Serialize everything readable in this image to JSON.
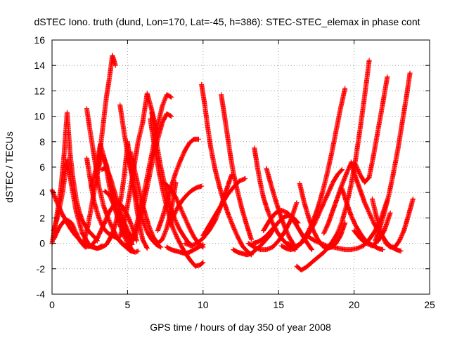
{
  "chart_data": {
    "type": "scatter",
    "title": "dSTEC Iono. truth (dund, Lon=170, Lat=-45, h=386): STEC-STEC_elemax in phase cont",
    "xlabel": "GPS time / hours of day 350 of year 2008",
    "ylabel": "dSTEC  / TECUs",
    "xlim": [
      0,
      25
    ],
    "ylim": [
      -4,
      16
    ],
    "x_ticks": [
      "0",
      "5",
      "10",
      "15",
      "20",
      "25"
    ],
    "y_ticks": [
      "-4",
      "-2",
      "0",
      "2",
      "4",
      "6",
      "8",
      "10",
      "12",
      "14",
      "16"
    ],
    "grid": true,
    "legend": "none",
    "marker": "+",
    "series_color": "#ff0000",
    "series": [
      {
        "x": [
          0.0,
          0.3,
          0.6,
          0.9,
          1.2,
          1.5,
          1.8,
          2.1,
          2.4,
          2.7,
          3.0,
          3.3,
          3.6,
          3.8,
          4.0,
          4.2,
          4.4,
          4.6,
          4.8,
          5.0
        ],
        "y": [
          4.2,
          3.3,
          2.5,
          1.8,
          1.2,
          0.7,
          0.3,
          0.0,
          -0.2,
          -0.3,
          -0.4,
          -0.3,
          -0.1,
          0.3,
          0.8,
          1.5,
          2.5,
          3.8,
          5.5,
          7.8
        ]
      },
      {
        "x": [
          0.0,
          0.3,
          0.6,
          0.8,
          1.0,
          1.2,
          1.4,
          1.6,
          1.8,
          2.0,
          2.4,
          2.8,
          3.0
        ],
        "y": [
          0.0,
          2.0,
          4.5,
          7.0,
          10.3,
          7.0,
          5.0,
          3.5,
          2.5,
          1.8,
          1.0,
          0.5,
          0.2
        ]
      },
      {
        "x": [
          0.1,
          0.4,
          0.7,
          1.0,
          1.3,
          1.6,
          2.0,
          2.5,
          3.0,
          3.3
        ],
        "y": [
          1.0,
          2.2,
          4.0,
          6.6,
          4.5,
          2.5,
          0.8,
          -0.2,
          -0.4,
          -0.2
        ]
      },
      {
        "x": [
          0.1,
          0.5,
          0.9,
          1.3,
          1.6,
          1.9,
          2.2,
          2.6,
          3.0,
          3.4,
          3.8,
          4.2,
          4.6,
          5.0,
          5.4,
          5.6
        ],
        "y": [
          0.3,
          1.3,
          1.9,
          1.6,
          0.8,
          0.1,
          -0.3,
          -0.2,
          0.4,
          1.4,
          2.5,
          3.2,
          3.0,
          2.2,
          1.0,
          0.2
        ]
      },
      {
        "x": [
          2.3,
          2.5,
          2.7,
          2.9,
          3.1,
          3.4,
          3.7,
          4.0,
          4.3,
          4.6,
          5.0,
          5.3
        ],
        "y": [
          10.6,
          9.0,
          7.5,
          6.0,
          4.5,
          3.0,
          2.0,
          1.2,
          0.5,
          0.0,
          -0.4,
          -0.6
        ]
      },
      {
        "x": [
          2.3,
          2.6,
          2.8,
          3.1,
          3.4,
          3.7,
          4.0,
          4.3,
          4.6,
          4.9,
          5.2,
          5.5,
          5.7
        ],
        "y": [
          6.7,
          4.5,
          3.2,
          2.0,
          1.2,
          0.8,
          0.6,
          0.4,
          0.1,
          -0.3,
          -0.6,
          -0.7,
          -0.6
        ]
      },
      {
        "x": [
          2.1,
          2.4,
          2.7,
          3.0,
          3.2,
          3.4,
          3.6,
          3.8,
          4.0,
          4.2
        ],
        "y": [
          0.0,
          1.5,
          3.5,
          5.5,
          7.5,
          9.5,
          11.5,
          13.0,
          14.8,
          14.0
        ]
      },
      {
        "x": [
          2.6,
          2.9,
          3.2,
          3.5,
          3.8,
          4.1,
          4.4,
          4.7,
          5.0,
          5.3
        ],
        "y": [
          4.4,
          5.8,
          7.8,
          6.5,
          4.5,
          3.0,
          1.8,
          0.8,
          0.0,
          -0.5
        ]
      },
      {
        "x": [
          3.0,
          3.3,
          3.6,
          3.9,
          4.2,
          4.5,
          4.8
        ],
        "y": [
          5.5,
          7.0,
          6.2,
          4.5,
          3.0,
          1.8,
          0.9
        ]
      },
      {
        "x": [
          3.3,
          3.6,
          3.9,
          4.2,
          4.5,
          4.8,
          5.1,
          5.4
        ],
        "y": [
          5.8,
          6.0,
          5.0,
          3.8,
          2.6,
          1.6,
          0.8,
          0.2
        ]
      },
      {
        "x": [
          3.5,
          3.8,
          4.1,
          4.4,
          4.7,
          5.0,
          5.3
        ],
        "y": [
          4.1,
          3.8,
          3.0,
          2.2,
          1.4,
          0.6,
          -0.1
        ]
      },
      {
        "x": [
          4.5,
          4.8,
          5.1,
          5.4,
          5.7,
          6.0,
          6.3,
          6.6,
          6.9,
          7.2
        ],
        "y": [
          10.9,
          8.5,
          6.5,
          4.6,
          3.0,
          1.8,
          0.9,
          0.3,
          -0.1,
          -0.3
        ]
      },
      {
        "x": [
          4.5,
          4.8,
          5.1,
          5.4,
          5.7,
          6.0,
          6.3,
          6.6,
          6.9
        ],
        "y": [
          0.5,
          1.8,
          3.6,
          5.8,
          8.0,
          9.5,
          11.8,
          10.5,
          9.0
        ]
      },
      {
        "x": [
          5.0,
          5.2,
          5.4,
          5.6,
          5.8,
          6.0,
          6.3
        ],
        "y": [
          8.0,
          6.2,
          4.5,
          2.8,
          1.4,
          0.3,
          -0.4
        ]
      },
      {
        "x": [
          5.2,
          5.5,
          5.8,
          6.1,
          6.4,
          6.7,
          7.0,
          7.3,
          7.6,
          7.9,
          8.2
        ],
        "y": [
          7.2,
          5.6,
          4.0,
          2.6,
          1.4,
          0.5,
          0.0,
          0.3,
          1.2,
          2.6,
          4.8
        ]
      },
      {
        "x": [
          5.2,
          5.5,
          5.8,
          6.1,
          6.4,
          6.7,
          7.0,
          7.3,
          7.6,
          7.9
        ],
        "y": [
          0.0,
          1.0,
          2.4,
          4.0,
          5.8,
          7.6,
          9.3,
          10.8,
          11.7,
          11.5
        ]
      },
      {
        "x": [
          5.5,
          5.8,
          6.1,
          6.4,
          6.7,
          7.0,
          7.3,
          7.6,
          7.9
        ],
        "y": [
          0.5,
          1.8,
          3.3,
          5.0,
          6.8,
          8.2,
          9.5,
          10.2,
          10.0
        ]
      },
      {
        "x": [
          6.5,
          6.8,
          7.1,
          7.4,
          7.7,
          8.0,
          8.3,
          8.6,
          8.9,
          9.2,
          9.5,
          9.8,
          10.0
        ],
        "y": [
          9.8,
          7.5,
          5.5,
          3.8,
          2.4,
          1.2,
          0.4,
          -0.3,
          -0.9,
          -1.4,
          -1.8,
          -1.7,
          -1.5
        ]
      },
      {
        "x": [
          6.6,
          6.9,
          7.2,
          7.5,
          7.8,
          8.1,
          8.4,
          8.7,
          9.0,
          9.3
        ],
        "y": [
          10.3,
          8.0,
          6.0,
          4.4,
          3.0,
          2.0,
          1.2,
          0.6,
          0.1,
          -0.2
        ]
      },
      {
        "x": [
          7.0,
          7.3,
          7.6,
          7.9,
          8.2,
          8.5,
          8.8,
          9.1,
          9.4,
          9.7
        ],
        "y": [
          1.0,
          2.0,
          3.2,
          4.5,
          5.6,
          6.5,
          7.3,
          7.9,
          8.2,
          8.2
        ]
      },
      {
        "x": [
          7.3,
          7.6,
          7.9,
          8.2,
          8.5,
          8.8,
          9.1,
          9.4,
          9.7,
          10.0
        ],
        "y": [
          4.8,
          4.6,
          4.2,
          3.6,
          2.8,
          2.0,
          1.2,
          0.5,
          0.0,
          -0.3
        ]
      },
      {
        "x": [
          7.6,
          7.9,
          8.2,
          8.5,
          8.8,
          9.1,
          9.4,
          9.7,
          10.0
        ],
        "y": [
          -0.3,
          -0.5,
          -0.6,
          -0.7,
          -0.8,
          -0.7,
          -0.5,
          -0.3,
          -0.1
        ]
      },
      {
        "x": [
          7.8,
          8.1,
          8.4,
          8.7,
          9.0,
          9.3,
          9.6,
          9.9
        ],
        "y": [
          1.5,
          2.3,
          3.0,
          3.5,
          3.9,
          4.2,
          4.4,
          4.5
        ]
      },
      {
        "x": [
          9.9,
          10.1,
          10.3,
          10.5,
          10.8,
          11.1,
          11.4,
          11.7,
          12.0,
          12.3,
          12.6,
          12.9,
          13.2
        ],
        "y": [
          12.5,
          11.0,
          9.2,
          7.6,
          5.8,
          4.4,
          3.2,
          2.2,
          1.3,
          0.5,
          -0.2,
          -0.6,
          -0.9
        ]
      },
      {
        "x": [
          10.0,
          10.4,
          10.8,
          11.2,
          11.6,
          12.0,
          12.4,
          12.8
        ],
        "y": [
          0.6,
          1.4,
          2.2,
          3.0,
          3.8,
          4.4,
          4.9,
          5.1
        ]
      },
      {
        "x": [
          8.8,
          9.2,
          9.6,
          10.0,
          10.4,
          10.8,
          11.2,
          11.6,
          11.9
        ],
        "y": [
          0.0,
          -0.2,
          0.0,
          0.4,
          1.0,
          1.8,
          3.0,
          4.4,
          5.4
        ]
      },
      {
        "x": [
          11.2,
          11.4,
          11.6,
          11.8,
          12.0,
          12.3,
          12.6,
          12.9,
          13.2
        ],
        "y": [
          11.7,
          10.2,
          8.6,
          7.0,
          5.6,
          4.0,
          2.6,
          1.4,
          0.3
        ]
      },
      {
        "x": [
          12.0,
          12.3,
          12.6,
          12.9,
          13.2,
          13.5,
          13.8,
          14.1,
          14.4,
          14.7
        ],
        "y": [
          -0.5,
          -0.7,
          -0.8,
          -0.9,
          -0.8,
          -0.5,
          -0.2,
          0.2,
          0.6,
          1.2
        ]
      },
      {
        "x": [
          13.4,
          13.6,
          13.8,
          14.0,
          14.3,
          14.6,
          14.9,
          15.2,
          15.5,
          15.8,
          16.1
        ],
        "y": [
          7.5,
          6.0,
          4.7,
          3.6,
          2.5,
          1.6,
          0.9,
          0.4,
          0.0,
          -0.3,
          -0.5
        ]
      },
      {
        "x": [
          14.2,
          14.5,
          14.8,
          15.1,
          15.4,
          15.7,
          16.0
        ],
        "y": [
          5.9,
          4.6,
          3.4,
          2.3,
          1.3,
          0.5,
          -0.1
        ]
      },
      {
        "x": [
          13.3,
          13.6,
          13.9,
          14.2,
          14.5,
          14.8,
          15.1,
          15.4,
          15.7,
          16.0,
          16.3
        ],
        "y": [
          0.0,
          0.1,
          0.3,
          0.6,
          1.0,
          1.4,
          1.8,
          2.1,
          2.2,
          2.0,
          1.6
        ]
      },
      {
        "x": [
          13.0,
          13.4,
          13.8,
          14.2,
          14.6,
          15.0,
          15.4,
          15.8,
          16.2
        ],
        "y": [
          0.0,
          -0.3,
          -0.5,
          -0.5,
          -0.3,
          0.2,
          0.9,
          1.8,
          3.2
        ]
      },
      {
        "x": [
          14.0,
          14.4,
          14.8,
          15.2,
          15.6,
          16.0,
          16.4,
          16.8,
          17.2
        ],
        "y": [
          1.0,
          1.8,
          2.4,
          2.6,
          2.4,
          1.8,
          1.0,
          0.2,
          -0.5
        ]
      },
      {
        "x": [
          16.2,
          16.5,
          16.8,
          17.1,
          17.4,
          17.7,
          18.0,
          18.3,
          18.6,
          18.9,
          19.2,
          19.5,
          19.8,
          20.1,
          20.4,
          20.7,
          21.0
        ],
        "y": [
          -1.8,
          -2.1,
          -1.9,
          -1.6,
          -1.3,
          -1.0,
          -0.7,
          -0.3,
          0.2,
          0.8,
          1.7,
          3.0,
          4.6,
          6.6,
          9.0,
          11.6,
          14.4
        ]
      },
      {
        "x": [
          15.2,
          15.5,
          15.8,
          16.1,
          16.4,
          16.7,
          17.0,
          17.3,
          17.6,
          17.9,
          18.2,
          18.5,
          18.8,
          19.1,
          19.4
        ],
        "y": [
          -0.2,
          -0.4,
          -0.5,
          -0.4,
          -0.1,
          0.4,
          1.0,
          1.8,
          2.8,
          4.0,
          5.4,
          7.0,
          8.8,
          10.6,
          12.2
        ]
      },
      {
        "x": [
          15.6,
          15.9,
          16.2,
          16.5,
          16.8,
          17.1,
          17.4,
          17.7,
          18.0,
          18.3,
          18.6,
          18.9,
          19.2
        ],
        "y": [
          0.0,
          -0.2,
          -0.2,
          0.0,
          0.4,
          1.0,
          1.6,
          2.4,
          3.2,
          4.0,
          4.8,
          5.4,
          5.8
        ]
      },
      {
        "x": [
          16.4,
          16.7,
          17.0,
          17.3,
          17.6,
          17.9,
          18.2,
          18.5,
          18.8,
          19.1,
          19.4
        ],
        "y": [
          4.7,
          3.2,
          2.0,
          1.0,
          0.3,
          -0.2,
          -0.4,
          -0.3,
          0.0,
          0.6,
          1.6
        ]
      },
      {
        "x": [
          17.0,
          17.4,
          17.8,
          18.2,
          18.6,
          19.0,
          19.4,
          19.8,
          20.2,
          20.6,
          21.0,
          21.4,
          21.8,
          22.2
        ],
        "y": [
          0.5,
          0.2,
          0.0,
          -0.2,
          -0.3,
          -0.4,
          -0.5,
          -0.5,
          -0.4,
          -0.2,
          0.3,
          1.0,
          2.0,
          3.4
        ]
      },
      {
        "x": [
          18.0,
          18.3,
          18.6,
          18.9,
          19.2,
          19.5,
          19.8,
          20.1,
          20.4,
          20.7,
          21.0,
          21.3,
          21.6,
          21.9,
          22.2
        ],
        "y": [
          0.8,
          1.6,
          2.6,
          3.6,
          4.6,
          5.5,
          6.3,
          6.2,
          5.4,
          4.8,
          5.2,
          7.0,
          9.0,
          11.0,
          13.1
        ]
      },
      {
        "x": [
          19.2,
          19.5,
          19.8,
          20.1,
          20.4,
          20.7,
          21.0,
          21.3,
          21.6,
          21.9
        ],
        "y": [
          4.3,
          3.2,
          2.2,
          1.4,
          0.8,
          0.3,
          0.0,
          -0.2,
          -0.4,
          -0.5
        ]
      },
      {
        "x": [
          19.8,
          20.1,
          20.4,
          20.7,
          21.0,
          21.3,
          21.6,
          21.9,
          22.2,
          22.5,
          22.8,
          23.1
        ],
        "y": [
          6.4,
          5.2,
          4.2,
          3.2,
          2.4,
          1.6,
          1.0,
          0.5,
          0.0,
          -0.3,
          -0.5,
          -0.6
        ]
      },
      {
        "x": [
          21.2,
          21.5,
          21.8,
          22.1,
          22.4,
          22.7,
          23.0,
          23.3,
          23.6,
          23.9
        ],
        "y": [
          3.5,
          2.0,
          0.8,
          0.0,
          -0.3,
          -0.3,
          0.2,
          1.0,
          2.2,
          3.5
        ]
      },
      {
        "x": [
          21.4,
          21.7,
          22.0,
          22.3,
          22.6,
          22.9,
          23.2,
          23.5,
          23.7
        ],
        "y": [
          0.2,
          1.2,
          2.4,
          3.8,
          5.5,
          7.4,
          9.6,
          11.8,
          13.4
        ]
      },
      {
        "x": [
          20.0,
          20.4,
          20.8,
          21.2,
          21.6,
          22.0,
          22.4
        ],
        "y": [
          1.0,
          0.4,
          0.0,
          -0.2,
          0.2,
          1.0,
          2.4
        ]
      }
    ]
  }
}
